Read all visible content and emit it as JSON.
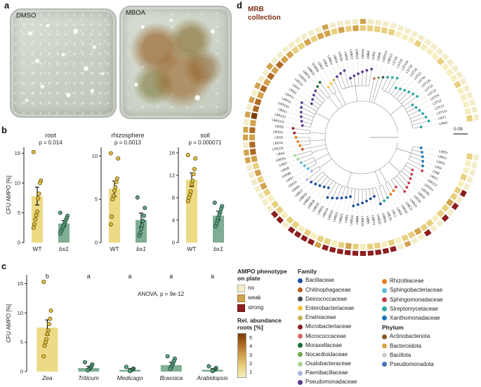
{
  "figure": {
    "panel_a": {
      "label": "a",
      "dishes": [
        {
          "name": "DMSO"
        },
        {
          "name": "MBOA"
        }
      ]
    },
    "panel_b": {
      "label": "b"
    },
    "panel_c": {
      "label": "c"
    },
    "panel_d": {
      "label": "d",
      "title_line1": "MRB",
      "title_line2": "collection",
      "scale_label": "0.09",
      "label_colors": {
        "Actinobacteriota": "#7a5c14",
        "Bacteroidota": "#a8762e",
        "Bacillota": "#3d4e73",
        "Pseudomonadota": "#7a1f2b"
      },
      "phylum_of": {
        "Bacillaceae": "Bacillota",
        "Paenibacillaceae": "Bacillota",
        "Chitinophagaceae": "Bacteroidota",
        "Sphingobacteriaceae": "Bacteroidota",
        "Deinococcaceae": "Actinobacteriota",
        "Microbacteriaceae": "Actinobacteriota",
        "Micrococcaceae": "Actinobacteriota",
        "Nocardioidaceae": "Actinobacteriota",
        "Streptomycetaceae": "Actinobacteriota",
        "Enterobacteriaceae": "Pseudomonadota",
        "Erwiniaceae": "Pseudomonadota",
        "Moraxellaceae": "Pseudomonadota",
        "Oxalobacteraceae": "Pseudomonadota",
        "Pseudomonadaceae": "Pseudomonadota",
        "Rhizobiaceae": "Pseudomonadota",
        "Sphingomonadaceae": "Pseudomonadota",
        "Xanthomonadaceae": "Pseudomonadota"
      },
      "strains": [
        {
          "n": "LMI2x",
          "f": "Xanthomonadaceae",
          "a": 2,
          "p": 0
        },
        {
          "n": "LMI1x",
          "f": "Xanthomonadaceae",
          "a": 1,
          "p": 0
        },
        {
          "n": "LMI11",
          "f": "Xanthomonadaceae",
          "a": 1,
          "p": 0
        },
        {
          "n": "LMI4",
          "f": "Xanthomonadaceae",
          "a": 2,
          "p": 0
        },
        {
          "n": "LMI8",
          "f": "Xanthomonadaceae",
          "a": 1,
          "p": 0
        },
        {
          "n": "LMX7",
          "f": "Sphingomonadaceae",
          "a": 2,
          "p": 2
        },
        {
          "n": "LWO13",
          "f": "Sphingomonadaceae",
          "a": 2,
          "p": 0
        },
        {
          "n": "LWO1x",
          "f": "Sphingomonadaceae",
          "a": 3,
          "p": 2
        },
        {
          "n": "LWO5x",
          "f": "Sphingomonadaceae",
          "a": 2,
          "p": 0
        },
        {
          "n": "LWO9",
          "f": "Sphingomonadaceae",
          "a": 2,
          "p": 2
        },
        {
          "n": "LWO8",
          "f": "Sphingomonadaceae",
          "a": 1,
          "p": 0
        },
        {
          "n": "LMA2x",
          "f": "Sphingomonadaceae",
          "a": 2,
          "p": 0
        },
        {
          "n": "LME21",
          "f": "Sphingomonadaceae",
          "a": 2,
          "p": 2
        },
        {
          "n": "LMD2x",
          "f": "Rhizobiaceae",
          "a": 3,
          "p": 0
        },
        {
          "n": "LMD9",
          "f": "Rhizobiaceae",
          "a": 2,
          "p": 0
        },
        {
          "n": "LML1",
          "f": "Streptomycetaceae",
          "a": 2,
          "p": 1
        },
        {
          "n": "LML5x",
          "f": "Streptomycetaceae",
          "a": 1,
          "p": 0
        },
        {
          "n": "LMB3x",
          "f": "Bacillaceae",
          "a": 2,
          "p": 2
        },
        {
          "n": "LMB16",
          "f": "Bacillaceae",
          "a": 1,
          "p": 2
        },
        {
          "n": "LMB7x",
          "f": "Bacillaceae",
          "a": 2,
          "p": 2
        },
        {
          "n": "LMB5",
          "f": "Bacillaceae",
          "a": 2,
          "p": 2
        },
        {
          "n": "LMB23",
          "f": "Bacillaceae",
          "a": 1,
          "p": 2
        },
        {
          "n": "LMB9",
          "f": "Bacillaceae",
          "a": 2,
          "p": 2
        },
        {
          "n": "LMB10",
          "f": "Bacillaceae",
          "a": 3,
          "p": 2
        },
        {
          "n": "LMB1",
          "f": "Bacillaceae",
          "a": 2,
          "p": 2
        },
        {
          "n": "LMB21",
          "f": "Bacillaceae",
          "a": 1,
          "p": 2
        },
        {
          "n": "LMB22",
          "f": "Bacillaceae",
          "a": 2,
          "p": 2
        },
        {
          "n": "LMD23",
          "f": "Bacillaceae",
          "a": 2,
          "p": 1
        },
        {
          "n": "LMD14",
          "f": "Bacillaceae",
          "a": 1,
          "p": 2
        },
        {
          "n": "LMB11",
          "f": "Bacillaceae",
          "a": 2,
          "p": 2
        },
        {
          "n": "LMB19",
          "f": "Bacillaceae",
          "a": 1,
          "p": 2
        },
        {
          "n": "LMB18",
          "f": "Bacillaceae",
          "a": 2,
          "p": 2
        },
        {
          "n": "LMB24",
          "f": "Bacillaceae",
          "a": 2,
          "p": 0
        },
        {
          "n": "LMB20",
          "f": "Bacillaceae",
          "a": 1,
          "p": 2
        },
        {
          "n": "LMB17",
          "f": "Bacillaceae",
          "a": 2,
          "p": 2
        },
        {
          "n": "LBA9x",
          "f": "Paenibacillaceae",
          "a": 2,
          "p": 0
        },
        {
          "n": "LBA10",
          "f": "Paenibacillaceae",
          "a": 1,
          "p": 0
        },
        {
          "n": "LWS7",
          "f": "Sphingobacteriaceae",
          "a": 2,
          "p": 0
        },
        {
          "n": "LWS8x",
          "f": "Sphingobacteriaceae",
          "a": 3,
          "p": 0
        },
        {
          "n": "LWS9",
          "f": "Sphingobacteriaceae",
          "a": 2,
          "p": 0
        },
        {
          "n": "LMD7",
          "f": "Oxalobacteraceae",
          "a": 3,
          "p": 0
        },
        {
          "n": "LMD5x",
          "f": "Oxalobacteraceae",
          "a": 2,
          "p": 0
        },
        {
          "n": "LBA5",
          "f": "Chitinophagaceae",
          "a": 3,
          "p": 1
        },
        {
          "n": "LPE13x",
          "f": "Rhizobiaceae",
          "a": 4,
          "p": 1
        },
        {
          "n": "LBO4x",
          "f": "Rhizobiaceae",
          "a": 4,
          "p": 0
        },
        {
          "n": "LBO6",
          "f": "Rhizobiaceae",
          "a": 3,
          "p": 1
        },
        {
          "n": "LWS2x",
          "f": "Microbacteriaceae",
          "a": 4,
          "p": 1
        },
        {
          "n": "LWS6",
          "f": "Microbacteriaceae",
          "a": 3,
          "p": 0
        },
        {
          "n": "LBA112x",
          "f": "Pseudomonadaceae",
          "a": 5,
          "p": 1
        },
        {
          "n": "LBA112",
          "f": "Pseudomonadaceae",
          "a": 4,
          "p": 0
        },
        {
          "n": "LBA1x",
          "f": "Pseudomonadaceae",
          "a": 4,
          "p": 1
        },
        {
          "n": "LWS15x",
          "f": "Pseudomonadaceae",
          "a": 3,
          "p": 0
        },
        {
          "n": "LMH1x",
          "f": "Pseudomonadaceae",
          "a": 4,
          "p": 1
        },
        {
          "n": "LBA7x",
          "f": "Pseudomonadaceae",
          "a": 3,
          "p": 0
        },
        {
          "n": "LMA1",
          "f": "Pseudomonadaceae",
          "a": 4,
          "p": 0
        },
        {
          "n": "LMX2",
          "f": "Pseudomonadaceae",
          "a": 3,
          "p": 1
        },
        {
          "n": "LMD1x",
          "f": "Pseudomonadaceae",
          "a": 4,
          "p": 0
        },
        {
          "n": "LMA5x",
          "f": "Pseudomonadaceae",
          "a": 3,
          "p": 0
        },
        {
          "n": "LME2x",
          "f": "Moraxellaceae",
          "a": 3,
          "p": 0
        },
        {
          "n": "LMB15",
          "f": "Moraxellaceae",
          "a": 2,
          "p": 0
        },
        {
          "n": "ZOM3x",
          "f": "Enterobacteriaceae",
          "a": 2,
          "p": 0
        },
        {
          "n": "LME3",
          "f": "Enterobacteriaceae",
          "a": 3,
          "p": 0
        },
        {
          "n": "LME4",
          "f": "Erwiniaceae",
          "a": 2,
          "p": 0
        },
        {
          "n": "LMB1x",
          "f": "Pseudomonadaceae",
          "a": 3,
          "p": 0
        },
        {
          "n": "LMD3",
          "f": "Pseudomonadaceae",
          "a": 3,
          "p": 1
        },
        {
          "n": "LMH3x",
          "f": "Pseudomonadaceae",
          "a": 2,
          "p": 0
        },
        {
          "n": "LMD8",
          "f": "Pseudomonadaceae",
          "a": 3,
          "p": 0
        },
        {
          "n": "LMB12",
          "f": "Pseudomonadaceae",
          "a": 2,
          "p": 0
        },
        {
          "n": "LMB13",
          "f": "Pseudomonadaceae",
          "a": 3,
          "p": 0
        },
        {
          "n": "LMX3x",
          "f": "Pseudomonadaceae",
          "a": 2,
          "p": 1
        },
        {
          "n": "LMB6",
          "f": "Pseudomonadaceae",
          "a": 2,
          "p": 0
        },
        {
          "n": "LMB2",
          "f": "Pseudomonadaceae",
          "a": 2,
          "p": 0
        },
        {
          "n": "LMA8",
          "f": "Micrococcaceae",
          "a": 2,
          "p": 0
        },
        {
          "n": "LMD21x",
          "f": "Nocardioidaceae",
          "a": 2,
          "p": 0
        },
        {
          "n": "LMD12",
          "f": "Deinococcaceae",
          "a": 1,
          "p": 0
        },
        {
          "n": "LST19",
          "f": "Streptomycetaceae",
          "a": 1,
          "p": 0
        },
        {
          "n": "LST16",
          "f": "Streptomycetaceae",
          "a": 1,
          "p": 0
        },
        {
          "n": "LST15x",
          "f": "Streptomycetaceae",
          "a": 2,
          "p": 0
        },
        {
          "n": "LST20",
          "f": "Streptomycetaceae",
          "a": 1,
          "p": 0
        },
        {
          "n": "LST18",
          "f": "Streptomycetaceae",
          "a": 1,
          "p": 0
        },
        {
          "n": "LST21",
          "f": "Streptomycetaceae",
          "a": 1,
          "p": 0
        },
        {
          "n": "LST3x",
          "f": "Streptomycetaceae",
          "a": 2,
          "p": 0
        },
        {
          "n": "LST12x",
          "f": "Streptomycetaceae",
          "a": 1,
          "p": 0
        },
        {
          "n": "LST14",
          "f": "Streptomycetaceae",
          "a": 1,
          "p": 0
        },
        {
          "n": "LST15",
          "f": "Streptomycetaceae",
          "a": 1,
          "p": 0
        },
        {
          "n": "LST24",
          "f": "Streptomycetaceae",
          "a": 2,
          "p": 0
        },
        {
          "n": "LST12",
          "f": "Streptomycetaceae",
          "a": 1,
          "p": 0
        },
        {
          "n": "LST13",
          "f": "Streptomycetaceae",
          "a": 1,
          "p": 0
        },
        {
          "n": "LST11x",
          "f": "Streptomycetaceae",
          "a": 1,
          "p": 0
        },
        {
          "n": "LMT1",
          "f": "Streptomycetaceae",
          "a": 1,
          "p": 0
        },
        {
          "n": "LMN1",
          "f": "Streptomycetaceae",
          "a": 2,
          "p": 0
        }
      ]
    },
    "legends": {
      "phenotype": {
        "title_line1": "AMPO phenotype",
        "title_line2": "on plate",
        "items": [
          {
            "label": "no",
            "color": "#f3ecc8"
          },
          {
            "label": "weak",
            "color": "#d2a24c"
          },
          {
            "label": "strong",
            "color": "#8e1f1f"
          }
        ]
      },
      "abundance": {
        "title_line1": "Rel. abundance",
        "title_line2": "roots [%]",
        "ticks": [
          "5",
          "4",
          "3",
          "2",
          "1"
        ],
        "colors": [
          "#7a3b06",
          "#b06a24",
          "#d2a24c",
          "#e7d07e",
          "#f6eebe"
        ]
      },
      "family": {
        "title": "Family",
        "col1": [
          {
            "label": "Bacillaceae",
            "color": "#1f4f9e"
          },
          {
            "label": "Chitinophagaceae",
            "color": "#b85c1f"
          },
          {
            "label": "Deinococcaceae",
            "color": "#474d59"
          },
          {
            "label": "Enterobacteriaceae",
            "color": "#f0c53a"
          },
          {
            "label": "Erwiniaceae",
            "color": "#c9b35c"
          },
          {
            "label": "Microbacteriaceae",
            "color": "#8e1f2a"
          },
          {
            "label": "Micrococcaceae",
            "color": "#d86a6a"
          },
          {
            "label": "Moraxellaceae",
            "color": "#1d6b3c"
          },
          {
            "label": "Nocardioidaceae",
            "color": "#6faa4e"
          },
          {
            "label": "Oxalobacteraceae",
            "color": "#a6d495"
          },
          {
            "label": "Paenibacillaceae",
            "color": "#aeb6e0"
          },
          {
            "label": "Pseudomonadaceae",
            "color": "#5b3d8f"
          }
        ],
        "col2": [
          {
            "label": "Rhizobiaceae",
            "color": "#e87d1e"
          },
          {
            "label": "Sphingobacteriaceae",
            "color": "#5bb8dc"
          },
          {
            "label": "Sphingomonadaceae",
            "color": "#c23b4b"
          },
          {
            "label": "Streptomycetaceae",
            "color": "#2aa7a0"
          },
          {
            "label": "Xanthomonadaceae",
            "color": "#1778b5"
          }
        ]
      },
      "phylum": {
        "title": "Phylum",
        "items": [
          {
            "label": "Actinobacteriota",
            "color": "#8a5a2a"
          },
          {
            "label": "Bacteroidota",
            "color": "#d9a441"
          },
          {
            "label": "Bacillota",
            "color": "#c9cfd6"
          },
          {
            "label": "Pseudomonadota",
            "color": "#4472b8"
          }
        ]
      }
    }
  },
  "chart_data": [
    {
      "id": "root",
      "type": "bar",
      "title": "root",
      "pvalue": "p = 0.014",
      "ylabel": "CFU AMPO [%]",
      "ylim": [
        0,
        16
      ],
      "yticks": [
        0,
        5,
        10,
        15
      ],
      "categories": [
        "WT",
        "bx1"
      ],
      "italic": [
        false,
        true
      ],
      "values": [
        7.8,
        3.2
      ],
      "errors": [
        1.5,
        0.5
      ],
      "colors": [
        "#ecdb84",
        "#7fae94"
      ],
      "point_colors": [
        {
          "fill": "#e2bf3f",
          "stroke": "#6e5a17"
        },
        {
          "fill": "#5f9e7e",
          "stroke": "#1f4d38"
        }
      ],
      "points": [
        [
          15.2,
          10.4,
          10.0,
          8.2,
          7.4,
          5.2,
          4.6,
          3.9,
          3.1,
          2.5
        ],
        [
          5.0,
          4.5,
          4.1,
          3.7,
          3.3,
          3.0,
          2.6,
          2.2,
          1.9,
          1.5
        ]
      ]
    },
    {
      "id": "rhizosphere",
      "type": "bar",
      "title": "rhizosphere",
      "pvalue": "p = 0.0013",
      "ylim": [
        0,
        11
      ],
      "yticks": [
        0,
        5,
        10
      ],
      "categories": [
        "WT",
        "bx1"
      ],
      "italic": [
        false,
        true
      ],
      "values": [
        6.2,
        2.6
      ],
      "errors": [
        0.9,
        0.8
      ],
      "colors": [
        "#ecdb84",
        "#7fae94"
      ],
      "point_colors": [
        {
          "fill": "#e2bf3f",
          "stroke": "#6e5a17"
        },
        {
          "fill": "#5f9e7e",
          "stroke": "#1f4d38"
        }
      ],
      "points": [
        [
          10.3,
          9.7,
          7.4,
          7.0,
          6.4,
          6.0,
          5.4,
          5.0,
          3.0,
          2.1
        ],
        [
          5.2,
          4.0,
          3.1,
          2.5,
          2.0,
          1.6,
          1.1,
          0.8
        ]
      ]
    },
    {
      "id": "soil",
      "type": "bar",
      "title": "soil",
      "pvalue": "p = 0.000071",
      "ylim": [
        0,
        17
      ],
      "yticks": [
        0,
        4,
        8,
        12,
        16
      ],
      "categories": [
        "WT",
        "bx1"
      ],
      "italic": [
        false,
        true
      ],
      "values": [
        11.2,
        4.8
      ],
      "errors": [
        1.2,
        0.8
      ],
      "colors": [
        "#ecdb84",
        "#7fae94"
      ],
      "point_colors": [
        {
          "fill": "#e2bf3f",
          "stroke": "#6e5a17"
        },
        {
          "fill": "#5f9e7e",
          "stroke": "#1f4d38"
        }
      ],
      "points": [
        [
          15.6,
          15.0,
          13.1,
          12.2,
          11.0,
          10.4,
          9.1,
          8.5,
          8.0,
          7.4
        ],
        [
          7.1,
          6.5,
          6.0,
          5.4,
          5.0,
          4.4,
          3.9,
          3.4,
          2.9
        ]
      ]
    },
    {
      "id": "host",
      "type": "bar",
      "annotation": "ANOVA, p = 9e-12",
      "ylabel": "CFU AMPO [%]",
      "ylim": [
        0,
        16.5
      ],
      "yticks": [
        0,
        5,
        10,
        15
      ],
      "categories": [
        "Zea",
        "Triticum",
        "Medicago",
        "Brassica",
        "Arabidopsis"
      ],
      "italic": [
        true,
        true,
        true,
        true,
        true
      ],
      "letters": [
        "b",
        "a",
        "a",
        "a",
        "a"
      ],
      "letters_y": 15.9,
      "values": [
        7.5,
        0.6,
        0.3,
        1.1,
        0.3
      ],
      "errors": [
        1.3,
        0.3,
        0.2,
        0.5,
        0.2
      ],
      "colors": [
        "#ecdb84",
        "#7fae94",
        "#7fae94",
        "#7fae94",
        "#7fae94"
      ],
      "point_colors": [
        {
          "fill": "#e2bf3f",
          "stroke": "#6e5a17"
        },
        {
          "fill": "#5f9e7e",
          "stroke": "#1f4d38"
        },
        {
          "fill": "#5f9e7e",
          "stroke": "#1f4d38"
        },
        {
          "fill": "#5f9e7e",
          "stroke": "#1f4d38"
        },
        {
          "fill": "#5f9e7e",
          "stroke": "#1f4d38"
        }
      ],
      "points": [
        [
          15.3,
          10.4,
          9.0,
          8.1,
          7.0,
          6.4,
          5.5,
          5.0,
          4.4,
          2.6
        ],
        [
          1.6,
          1.2,
          0.9,
          0.7,
          0.5,
          0.4,
          0.2
        ],
        [
          0.8,
          0.5,
          0.4,
          0.3,
          0.2,
          0.1
        ],
        [
          2.6,
          2.2,
          1.8,
          1.4,
          1.1,
          0.8,
          0.5
        ],
        [
          0.9,
          0.6,
          0.4,
          0.3,
          0.2,
          0.1
        ]
      ]
    }
  ]
}
